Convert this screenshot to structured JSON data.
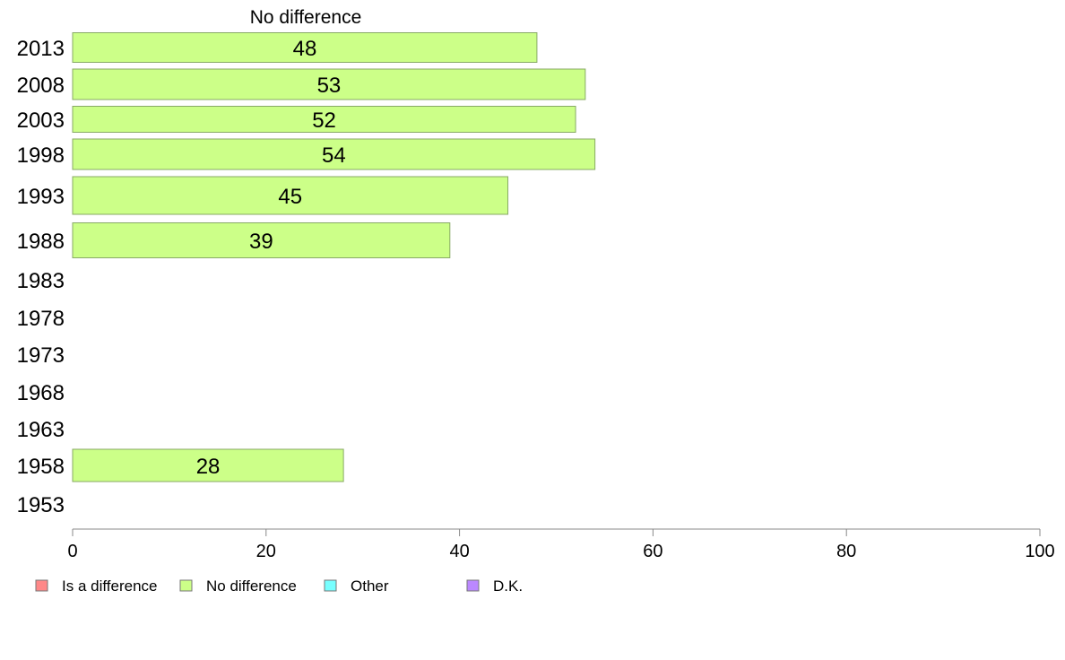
{
  "chart_data": {
    "type": "bar",
    "orientation": "horizontal",
    "title": "No difference",
    "categories": [
      "2013",
      "2008",
      "2003",
      "1998",
      "1993",
      "1988",
      "1983",
      "1978",
      "1973",
      "1968",
      "1963",
      "1958",
      "1953"
    ],
    "series": [
      {
        "name": "No difference",
        "color": "#ccff88",
        "values": [
          48,
          53,
          52,
          54,
          45,
          39,
          null,
          null,
          null,
          null,
          null,
          28,
          null
        ],
        "labels": [
          "48",
          "53",
          "52",
          "54",
          "45",
          "39",
          "",
          "",
          "",
          "",
          "",
          "28",
          ""
        ]
      }
    ],
    "xlim": [
      0,
      100
    ],
    "xticks": [
      "0",
      "20",
      "40",
      "60",
      "80",
      "100"
    ],
    "grid": false,
    "legend_position": "bottom",
    "legend": [
      {
        "label": "Is a difference",
        "color": "#ff8888"
      },
      {
        "label": "No difference",
        "color": "#ccff88"
      },
      {
        "label": "Other",
        "color": "#77ffff"
      },
      {
        "label": "D.K.",
        "color": "#bb88ff"
      }
    ]
  }
}
